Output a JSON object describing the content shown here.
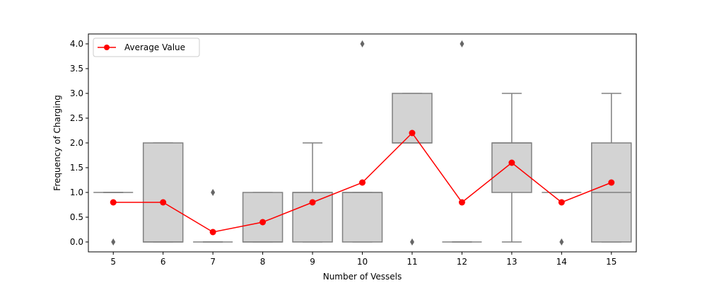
{
  "chart_data": {
    "type": "box",
    "title": "",
    "xlabel": "Number of Vessels",
    "ylabel": "Frequency of Charging",
    "ylim": [
      -0.2,
      4.2
    ],
    "yticks": [
      "0.0",
      "0.5",
      "1.0",
      "1.5",
      "2.0",
      "2.5",
      "3.0",
      "3.5",
      "4.0"
    ],
    "categories": [
      "5",
      "6",
      "7",
      "8",
      "9",
      "10",
      "11",
      "12",
      "13",
      "14",
      "15"
    ],
    "boxes": [
      {
        "category": "5",
        "whisker_low": 1,
        "q1": 1,
        "median": 1,
        "q3": 1,
        "whisker_high": 1,
        "outliers": [
          0
        ]
      },
      {
        "category": "6",
        "whisker_low": 0,
        "q1": 0,
        "median": 0,
        "q3": 2,
        "whisker_high": 2,
        "outliers": []
      },
      {
        "category": "7",
        "whisker_low": 0,
        "q1": 0,
        "median": 0,
        "q3": 0,
        "whisker_high": 0,
        "outliers": [
          1
        ]
      },
      {
        "category": "8",
        "whisker_low": 0,
        "q1": 0,
        "median": 0,
        "q3": 1,
        "whisker_high": 1,
        "outliers": []
      },
      {
        "category": "9",
        "whisker_low": 0,
        "q1": 0,
        "median": 1,
        "q3": 1,
        "whisker_high": 2,
        "outliers": []
      },
      {
        "category": "10",
        "whisker_low": 0,
        "q1": 0,
        "median": 1,
        "q3": 1,
        "whisker_high": 1,
        "outliers": [
          4
        ]
      },
      {
        "category": "11",
        "whisker_low": 2,
        "q1": 2,
        "median": 2,
        "q3": 3,
        "whisker_high": 3,
        "outliers": [
          0
        ]
      },
      {
        "category": "12",
        "whisker_low": 0,
        "q1": 0,
        "median": 0,
        "q3": 0,
        "whisker_high": 0,
        "outliers": [
          4
        ]
      },
      {
        "category": "13",
        "whisker_low": 0,
        "q1": 1,
        "median": 2,
        "q3": 2,
        "whisker_high": 3,
        "outliers": []
      },
      {
        "category": "14",
        "whisker_low": 1,
        "q1": 1,
        "median": 1,
        "q3": 1,
        "whisker_high": 1,
        "outliers": [
          0
        ]
      },
      {
        "category": "15",
        "whisker_low": 0,
        "q1": 0,
        "median": 1,
        "q3": 2,
        "whisker_high": 3,
        "outliers": []
      }
    ],
    "series": [
      {
        "name": "Average Value",
        "type": "line",
        "values": [
          0.8,
          0.8,
          0.2,
          0.4,
          0.8,
          1.2,
          2.2,
          0.8,
          1.6,
          0.8,
          1.2
        ]
      }
    ],
    "legend": {
      "position": "top-left",
      "label": "Average Value"
    },
    "grid": false,
    "colors": {
      "box_fill": "#d3d3d3",
      "box_edge": "#808080",
      "line": "#ff0000"
    }
  }
}
